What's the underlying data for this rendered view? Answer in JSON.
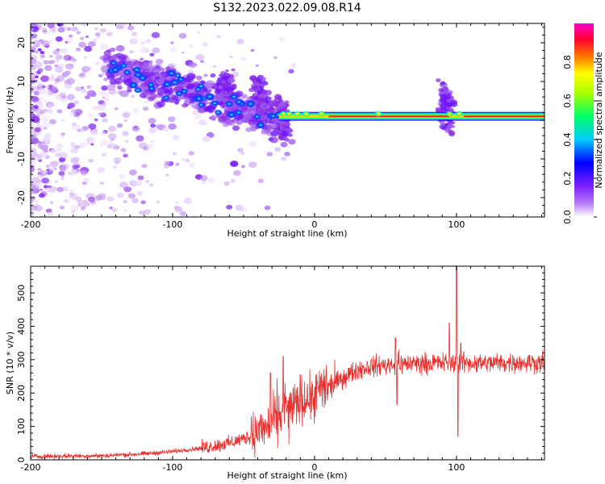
{
  "title": "S132.2023.022.09.08.R14",
  "chart_data": [
    {
      "type": "heatmap",
      "title": "S132.2023.022.09.08.R14",
      "xlabel": "Height of straight line (km)",
      "ylabel": "Frequency (Hz)",
      "xlim": [
        -200,
        162
      ],
      "ylim": [
        -25,
        25
      ],
      "x_ticks": [
        -200,
        -100,
        0,
        100
      ],
      "y_ticks": [
        -20,
        -10,
        0,
        10,
        20
      ],
      "colorbar": {
        "label": "Normalized spectral amplitude",
        "range": [
          0,
          1
        ],
        "ticks": [
          0.0,
          0.2,
          0.4,
          0.6,
          0.8
        ],
        "tick_labels": [
          "0.0",
          "0.2",
          "0.4",
          "0.6",
          "0.8"
        ],
        "colormap": [
          "#ffffff",
          "#8a2be2",
          "#0000ff",
          "#00ffff",
          "#00ff00",
          "#ffff00",
          "#ff0000",
          "#ff00ff"
        ]
      },
      "features": {
        "carrier_line": {
          "x_start": -25,
          "x_end": 162,
          "frequency_hz": 1,
          "amplitude": 0.85
        },
        "diagonal_streak": {
          "x_start": -145,
          "x_end": -25,
          "freq_start_hz": 14,
          "freq_end_hz": 0
        },
        "bursts": [
          {
            "x": -62,
            "freq_hz": 8
          },
          {
            "x": -38,
            "freq_hz": 6
          },
          {
            "x": 93,
            "freq_hz": 3
          },
          {
            "x": -22,
            "freq_hz": 0
          }
        ]
      }
    },
    {
      "type": "line",
      "xlabel": "Height of straight line (km)",
      "ylabel": "SNR (10 * v/v)",
      "xlim": [
        -200,
        162
      ],
      "ylim": [
        0,
        580
      ],
      "x_ticks": [
        -200,
        -100,
        0,
        100
      ],
      "y_ticks": [
        0,
        100,
        200,
        300,
        400,
        500
      ],
      "color": "#e8312f",
      "trend": {
        "x": [
          -200,
          -150,
          -120,
          -100,
          -80,
          -60,
          -45,
          -35,
          -25,
          -15,
          0,
          10,
          20,
          30,
          40,
          60,
          80,
          100,
          120,
          140,
          162
        ],
        "y": [
          10,
          12,
          18,
          25,
          35,
          50,
          70,
          95,
          130,
          165,
          195,
          215,
          245,
          270,
          280,
          288,
          290,
          290,
          290,
          291,
          292
        ]
      },
      "spikes": [
        {
          "x": -22,
          "y": 310
        },
        {
          "x": -31,
          "y": 260
        },
        {
          "x": -10,
          "y": 255
        },
        {
          "x": 57,
          "y": 365
        },
        {
          "x": 58,
          "y": 165
        },
        {
          "x": 95,
          "y": 410
        },
        {
          "x": 100,
          "y": 580
        },
        {
          "x": 101,
          "y": 70
        },
        {
          "x": 103,
          "y": 350
        }
      ]
    }
  ]
}
